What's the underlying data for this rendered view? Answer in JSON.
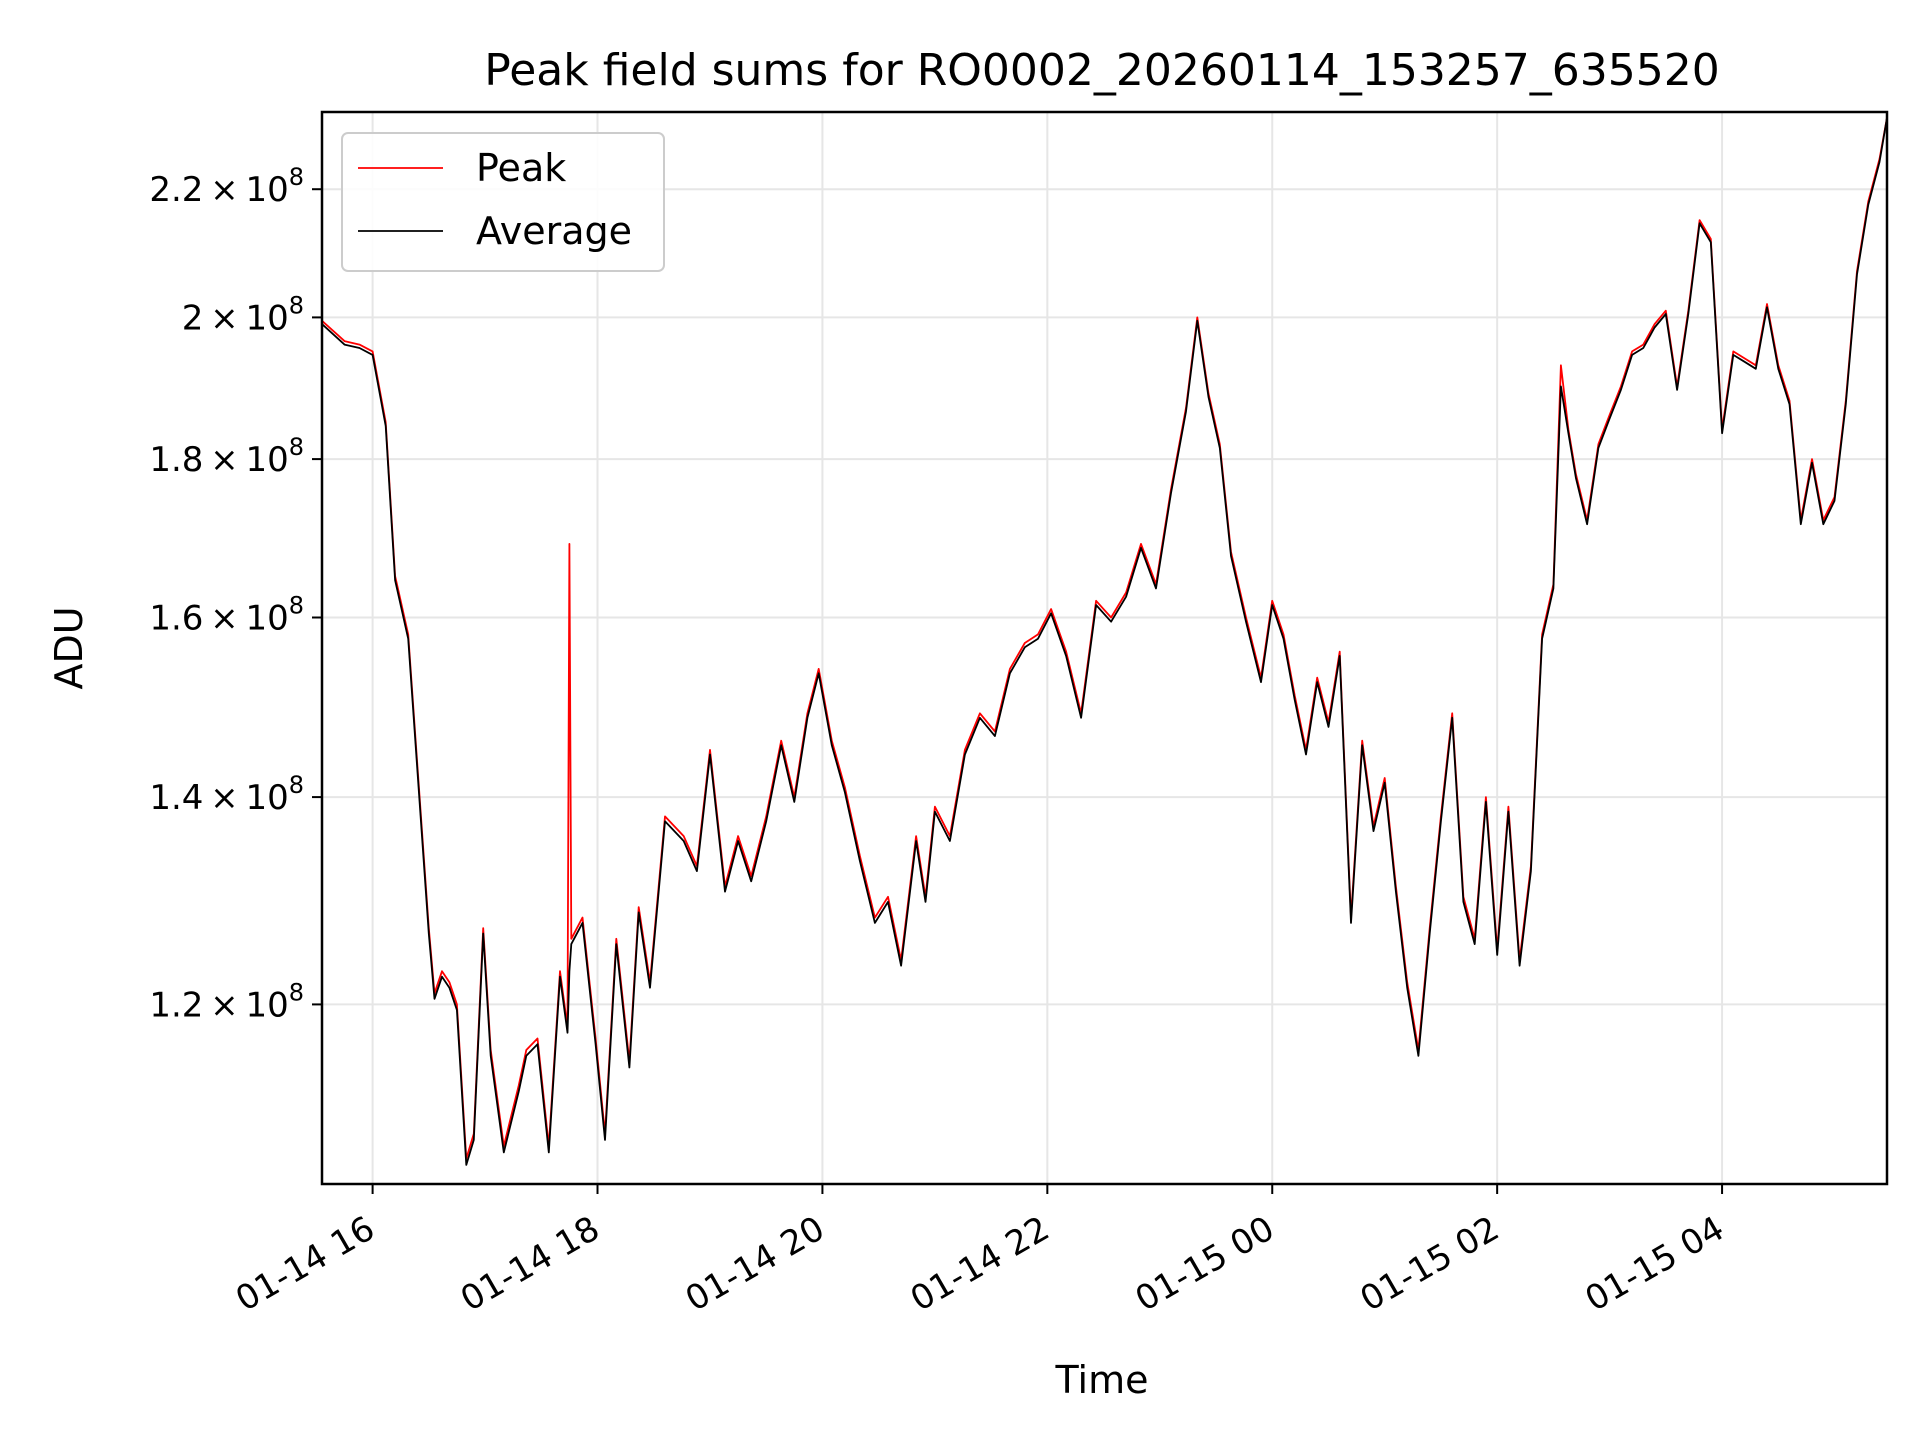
{
  "chart_data": {
    "type": "line",
    "title": "Peak field sums for RO0002_20260114_153257_635520",
    "xlabel": "Time",
    "ylabel": "ADU",
    "yscale": "log",
    "grid": true,
    "legend_position": "upper-left",
    "xlim": [
      "2026-01-14 15:33",
      "2026-01-15 05:28"
    ],
    "ylim": [
      105000000,
      233000000
    ],
    "x_ticks": [
      {
        "t": "2026-01-14 16:00",
        "label": "01-14 16"
      },
      {
        "t": "2026-01-14 18:00",
        "label": "01-14 18"
      },
      {
        "t": "2026-01-14 20:00",
        "label": "01-14 20"
      },
      {
        "t": "2026-01-14 22:00",
        "label": "01-14 22"
      },
      {
        "t": "2026-01-15 00:00",
        "label": "01-15 00"
      },
      {
        "t": "2026-01-15 02:00",
        "label": "01-15 02"
      },
      {
        "t": "2026-01-15 04:00",
        "label": "01-15 04"
      }
    ],
    "y_ticks": [
      {
        "value": 120000000,
        "mantissa": "1.2",
        "exp": "8"
      },
      {
        "value": 140000000,
        "mantissa": "1.4",
        "exp": "8"
      },
      {
        "value": 160000000,
        "mantissa": "1.6",
        "exp": "8"
      },
      {
        "value": 180000000,
        "mantissa": "1.8",
        "exp": "8"
      },
      {
        "value": 200000000,
        "mantissa": "2",
        "exp": "8"
      },
      {
        "value": 220000000,
        "mantissa": "2.2",
        "exp": "8"
      }
    ],
    "series": [
      {
        "name": "Peak",
        "color": "#ff0000",
        "x": [
          "2026-01-14 15:33",
          "2026-01-14 15:45",
          "2026-01-14 15:53",
          "2026-01-14 16:00",
          "2026-01-14 16:07",
          "2026-01-14 16:12",
          "2026-01-14 16:14",
          "2026-01-14 16:19",
          "2026-01-14 16:24",
          "2026-01-14 16:30",
          "2026-01-14 16:33",
          "2026-01-14 16:37",
          "2026-01-14 16:41",
          "2026-01-14 16:45",
          "2026-01-14 16:50",
          "2026-01-14 16:54",
          "2026-01-14 16:59",
          "2026-01-14 17:03",
          "2026-01-14 17:10",
          "2026-01-14 17:18",
          "2026-01-14 17:22",
          "2026-01-14 17:28",
          "2026-01-14 17:34",
          "2026-01-14 17:40",
          "2026-01-14 17:44",
          "2026-01-14 17:45",
          "2026-01-14 17:46",
          "2026-01-14 17:52",
          "2026-01-14 17:59",
          "2026-01-14 18:04",
          "2026-01-14 18:10",
          "2026-01-14 18:17",
          "2026-01-14 18:22",
          "2026-01-14 18:28",
          "2026-01-14 18:36",
          "2026-01-14 18:46",
          "2026-01-14 18:53",
          "2026-01-14 19:00",
          "2026-01-14 19:08",
          "2026-01-14 19:15",
          "2026-01-14 19:22",
          "2026-01-14 19:30",
          "2026-01-14 19:38",
          "2026-01-14 19:45",
          "2026-01-14 19:52",
          "2026-01-14 19:58",
          "2026-01-14 20:05",
          "2026-01-14 20:12",
          "2026-01-14 20:20",
          "2026-01-14 20:28",
          "2026-01-14 20:35",
          "2026-01-14 20:42",
          "2026-01-14 20:50",
          "2026-01-14 20:55",
          "2026-01-14 21:00",
          "2026-01-14 21:08",
          "2026-01-14 21:16",
          "2026-01-14 21:24",
          "2026-01-14 21:32",
          "2026-01-14 21:40",
          "2026-01-14 21:48",
          "2026-01-14 21:55",
          "2026-01-14 22:02",
          "2026-01-14 22:10",
          "2026-01-14 22:18",
          "2026-01-14 22:26",
          "2026-01-14 22:34",
          "2026-01-14 22:42",
          "2026-01-14 22:50",
          "2026-01-14 22:58",
          "2026-01-14 23:06",
          "2026-01-14 23:14",
          "2026-01-14 23:20",
          "2026-01-14 23:26",
          "2026-01-14 23:32",
          "2026-01-14 23:38",
          "2026-01-14 23:46",
          "2026-01-14 23:54",
          "2026-01-15 00:00",
          "2026-01-15 00:06",
          "2026-01-15 00:12",
          "2026-01-15 00:18",
          "2026-01-15 00:24",
          "2026-01-15 00:30",
          "2026-01-15 00:36",
          "2026-01-15 00:42",
          "2026-01-15 00:48",
          "2026-01-15 00:54",
          "2026-01-15 01:00",
          "2026-01-15 01:06",
          "2026-01-15 01:12",
          "2026-01-15 01:18",
          "2026-01-15 01:24",
          "2026-01-15 01:30",
          "2026-01-15 01:36",
          "2026-01-15 01:42",
          "2026-01-15 01:48",
          "2026-01-15 01:54",
          "2026-01-15 02:00",
          "2026-01-15 02:06",
          "2026-01-15 02:12",
          "2026-01-15 02:18",
          "2026-01-15 02:24",
          "2026-01-15 02:30",
          "2026-01-15 02:34",
          "2026-01-15 02:38",
          "2026-01-15 02:42",
          "2026-01-15 02:48",
          "2026-01-15 02:54",
          "2026-01-15 03:00",
          "2026-01-15 03:06",
          "2026-01-15 03:12",
          "2026-01-15 03:18",
          "2026-01-15 03:24",
          "2026-01-15 03:30",
          "2026-01-15 03:36",
          "2026-01-15 03:42",
          "2026-01-15 03:48",
          "2026-01-15 03:54",
          "2026-01-15 04:00",
          "2026-01-15 04:06",
          "2026-01-15 04:12",
          "2026-01-15 04:18",
          "2026-01-15 04:24",
          "2026-01-15 04:30",
          "2026-01-15 04:36",
          "2026-01-15 04:42",
          "2026-01-15 04:48",
          "2026-01-15 04:54",
          "2026-01-15 05:00",
          "2026-01-15 05:06",
          "2026-01-15 05:12",
          "2026-01-15 05:18",
          "2026-01-15 05:24",
          "2026-01-15 05:28"
        ],
        "values": [
          199500000,
          196500000,
          196000000,
          195000000,
          185000000,
          165000000,
          163000000,
          158000000,
          143000000,
          127000000,
          121000000,
          123000000,
          122000000,
          120000000,
          107000000,
          109000000,
          127000000,
          116000000,
          108000000,
          113000000,
          116000000,
          117000000,
          108000000,
          123000000,
          118000000,
          169000000,
          126000000,
          128000000,
          117000000,
          109000000,
          126000000,
          115000000,
          129000000,
          122000000,
          138000000,
          136000000,
          133000000,
          145000000,
          131000000,
          136000000,
          132000000,
          138000000,
          146000000,
          140000000,
          149000000,
          154000000,
          146000000,
          141000000,
          134000000,
          128000000,
          130000000,
          124000000,
          136000000,
          130000000,
          139000000,
          136000000,
          145000000,
          149000000,
          147000000,
          154000000,
          157000000,
          158000000,
          161000000,
          156000000,
          149000000,
          162000000,
          160000000,
          163000000,
          169000000,
          164000000,
          176000000,
          187000000,
          200000000,
          189000000,
          182000000,
          168000000,
          160000000,
          153000000,
          162000000,
          158000000,
          151000000,
          145000000,
          153000000,
          148000000,
          156000000,
          128000000,
          146000000,
          137000000,
          142000000,
          131000000,
          122000000,
          116000000,
          127000000,
          138000000,
          149000000,
          130000000,
          126000000,
          140000000,
          125000000,
          139000000,
          124000000,
          133000000,
          158000000,
          164000000,
          193000000,
          184000000,
          178000000,
          172000000,
          182000000,
          186000000,
          190000000,
          195000000,
          196000000,
          199000000,
          201000000,
          190000000,
          201000000,
          215000000,
          212000000,
          184000000,
          195000000,
          194000000,
          193000000,
          202000000,
          193000000,
          188000000,
          172000000,
          180000000,
          172000000,
          175000000,
          188000000,
          207000000,
          218000000,
          225000000,
          232000000
        ]
      },
      {
        "name": "Average",
        "color": "#000000",
        "x": [
          "2026-01-14 15:33",
          "2026-01-14 15:45",
          "2026-01-14 15:53",
          "2026-01-14 16:00",
          "2026-01-14 16:07",
          "2026-01-14 16:12",
          "2026-01-14 16:14",
          "2026-01-14 16:19",
          "2026-01-14 16:24",
          "2026-01-14 16:30",
          "2026-01-14 16:33",
          "2026-01-14 16:37",
          "2026-01-14 16:41",
          "2026-01-14 16:45",
          "2026-01-14 16:50",
          "2026-01-14 16:54",
          "2026-01-14 16:59",
          "2026-01-14 17:03",
          "2026-01-14 17:10",
          "2026-01-14 17:18",
          "2026-01-14 17:22",
          "2026-01-14 17:28",
          "2026-01-14 17:34",
          "2026-01-14 17:40",
          "2026-01-14 17:44",
          "2026-01-14 17:45",
          "2026-01-14 17:46",
          "2026-01-14 17:52",
          "2026-01-14 17:59",
          "2026-01-14 18:04",
          "2026-01-14 18:10",
          "2026-01-14 18:17",
          "2026-01-14 18:22",
          "2026-01-14 18:28",
          "2026-01-14 18:36",
          "2026-01-14 18:46",
          "2026-01-14 18:53",
          "2026-01-14 19:00",
          "2026-01-14 19:08",
          "2026-01-14 19:15",
          "2026-01-14 19:22",
          "2026-01-14 19:30",
          "2026-01-14 19:38",
          "2026-01-14 19:45",
          "2026-01-14 19:52",
          "2026-01-14 19:58",
          "2026-01-14 20:05",
          "2026-01-14 20:12",
          "2026-01-14 20:20",
          "2026-01-14 20:28",
          "2026-01-14 20:35",
          "2026-01-14 20:42",
          "2026-01-14 20:50",
          "2026-01-14 20:55",
          "2026-01-14 21:00",
          "2026-01-14 21:08",
          "2026-01-14 21:16",
          "2026-01-14 21:24",
          "2026-01-14 21:32",
          "2026-01-14 21:40",
          "2026-01-14 21:48",
          "2026-01-14 21:55",
          "2026-01-14 22:02",
          "2026-01-14 22:10",
          "2026-01-14 22:18",
          "2026-01-14 22:26",
          "2026-01-14 22:34",
          "2026-01-14 22:42",
          "2026-01-14 22:50",
          "2026-01-14 22:58",
          "2026-01-14 23:06",
          "2026-01-14 23:14",
          "2026-01-14 23:20",
          "2026-01-14 23:26",
          "2026-01-14 23:32",
          "2026-01-14 23:38",
          "2026-01-14 23:46",
          "2026-01-14 23:54",
          "2026-01-15 00:00",
          "2026-01-15 00:06",
          "2026-01-15 00:12",
          "2026-01-15 00:18",
          "2026-01-15 00:24",
          "2026-01-15 00:30",
          "2026-01-15 00:36",
          "2026-01-15 00:42",
          "2026-01-15 00:48",
          "2026-01-15 00:54",
          "2026-01-15 01:00",
          "2026-01-15 01:06",
          "2026-01-15 01:12",
          "2026-01-15 01:18",
          "2026-01-15 01:24",
          "2026-01-15 01:30",
          "2026-01-15 01:36",
          "2026-01-15 01:42",
          "2026-01-15 01:48",
          "2026-01-15 01:54",
          "2026-01-15 02:00",
          "2026-01-15 02:06",
          "2026-01-15 02:12",
          "2026-01-15 02:18",
          "2026-01-15 02:24",
          "2026-01-15 02:30",
          "2026-01-15 02:34",
          "2026-01-15 02:38",
          "2026-01-15 02:42",
          "2026-01-15 02:48",
          "2026-01-15 02:54",
          "2026-01-15 03:00",
          "2026-01-15 03:06",
          "2026-01-15 03:12",
          "2026-01-15 03:18",
          "2026-01-15 03:24",
          "2026-01-15 03:30",
          "2026-01-15 03:36",
          "2026-01-15 03:42",
          "2026-01-15 03:48",
          "2026-01-15 03:54",
          "2026-01-15 04:00",
          "2026-01-15 04:06",
          "2026-01-15 04:12",
          "2026-01-15 04:18",
          "2026-01-15 04:24",
          "2026-01-15 04:30",
          "2026-01-15 04:36",
          "2026-01-15 04:42",
          "2026-01-15 04:48",
          "2026-01-15 04:54",
          "2026-01-15 05:00",
          "2026-01-15 05:06",
          "2026-01-15 05:12",
          "2026-01-15 05:18",
          "2026-01-15 05:24",
          "2026-01-15 05:28"
        ],
        "values": [
          199000000,
          196000000,
          195500000,
          194500000,
          184500000,
          164500000,
          162500000,
          157500000,
          142500000,
          126500000,
          120500000,
          122500000,
          121500000,
          119500000,
          106500000,
          108500000,
          126500000,
          115500000,
          107500000,
          112500000,
          115500000,
          116500000,
          107500000,
          122500000,
          117500000,
          123000000,
          125500000,
          127500000,
          116500000,
          108500000,
          125500000,
          114500000,
          128500000,
          121500000,
          137500000,
          135500000,
          132500000,
          144500000,
          130500000,
          135500000,
          131500000,
          137500000,
          145500000,
          139500000,
          148500000,
          153500000,
          145500000,
          140500000,
          133500000,
          127500000,
          129500000,
          123500000,
          135500000,
          129500000,
          138500000,
          135500000,
          144500000,
          148500000,
          146500000,
          153500000,
          156500000,
          157500000,
          160500000,
          155500000,
          148500000,
          161500000,
          159500000,
          162500000,
          168500000,
          163500000,
          175500000,
          186500000,
          199500000,
          188500000,
          181500000,
          167500000,
          159500000,
          152500000,
          161500000,
          157500000,
          150500000,
          144500000,
          152500000,
          147500000,
          155500000,
          127500000,
          145500000,
          136500000,
          141500000,
          130500000,
          121500000,
          115500000,
          126500000,
          137500000,
          148500000,
          129500000,
          125500000,
          139500000,
          124500000,
          138500000,
          123500000,
          132500000,
          157500000,
          163500000,
          190000000,
          183500000,
          177500000,
          171500000,
          181500000,
          185500000,
          189500000,
          194500000,
          195500000,
          198500000,
          200500000,
          189500000,
          200500000,
          214500000,
          211500000,
          183500000,
          194500000,
          193500000,
          192500000,
          201500000,
          192500000,
          187500000,
          171500000,
          179500000,
          171500000,
          174500000,
          187500000,
          206500000,
          217500000,
          224500000,
          232000000
        ]
      }
    ]
  }
}
